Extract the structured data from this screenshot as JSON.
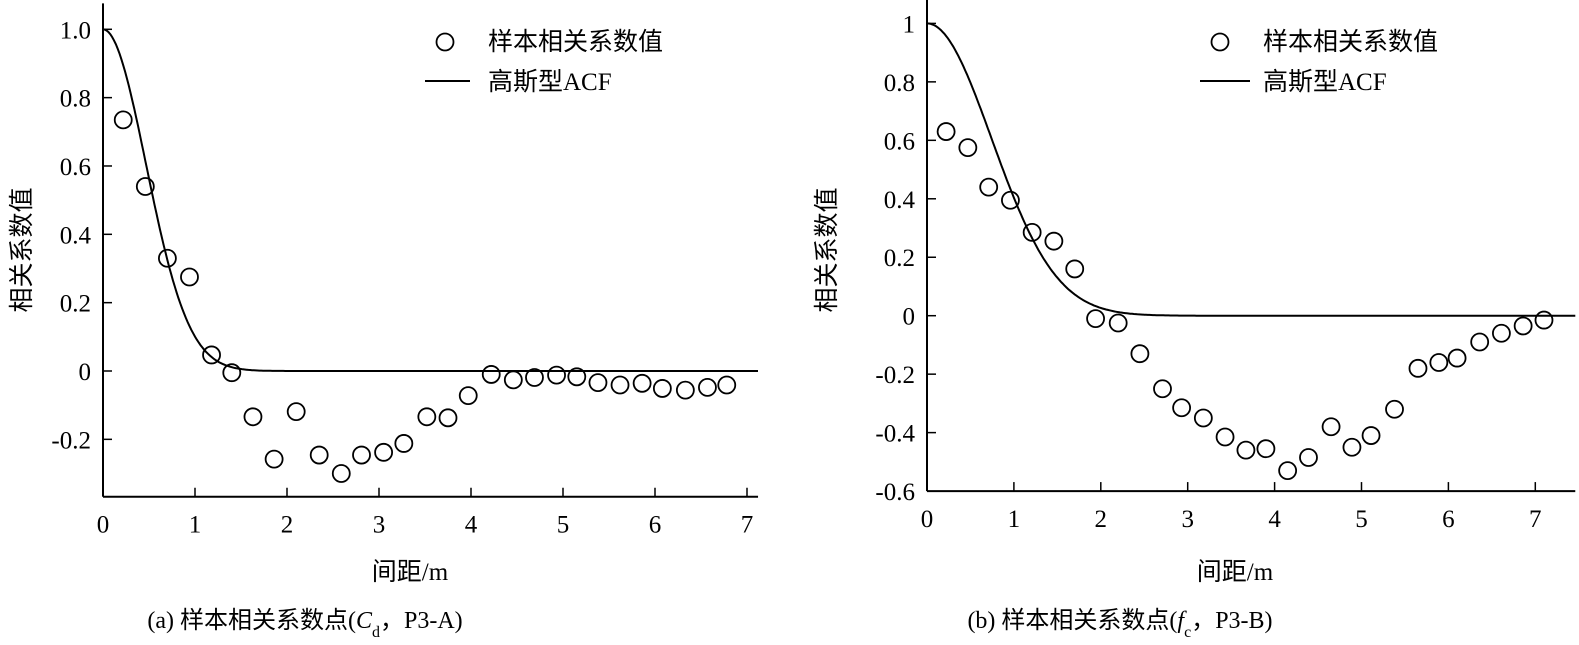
{
  "chart_data": [
    {
      "type": "scatter",
      "xlabel": "间距/m",
      "ylabel": "相关系数值",
      "caption": {
        "prefix": "(a) 样本相关系数点(",
        "var": "C",
        "sub": "d",
        "suffix": "，P3-A)"
      },
      "xlim": [
        0,
        7.12
      ],
      "ylim": [
        -0.368,
        1.076
      ],
      "xticks": [
        "0",
        "1",
        "2",
        "3",
        "4",
        "5",
        "6",
        "7"
      ],
      "xtick_values": [
        0,
        1,
        2,
        3,
        4,
        5,
        6,
        7
      ],
      "yticks": [
        "1.0",
        "0.8",
        "0.6",
        "0.4",
        "0.2",
        "0",
        "-0.2"
      ],
      "ytick_values": [
        1,
        0.8,
        0.6,
        0.4,
        0.2,
        0,
        -0.2
      ],
      "legend": {
        "placement": "top-right",
        "points_label": "样本相关系数值",
        "line_label": "高斯型ACF"
      },
      "grid": false,
      "series": [
        {
          "name": "样本相关系数值",
          "kind": "points",
          "x": [
            0.22,
            0.46,
            0.7,
            0.94,
            1.18,
            1.4,
            1.63,
            1.86,
            2.1,
            2.35,
            2.59,
            2.81,
            3.05,
            3.27,
            3.52,
            3.75,
            3.97,
            4.22,
            4.46,
            4.69,
            4.93,
            5.15,
            5.38,
            5.62,
            5.86,
            6.08,
            6.33,
            6.57,
            6.78
          ],
          "y": [
            0.735,
            0.54,
            0.33,
            0.275,
            0.047,
            -0.005,
            -0.134,
            -0.258,
            -0.119,
            -0.246,
            -0.3,
            -0.246,
            -0.238,
            -0.212,
            -0.134,
            -0.137,
            -0.072,
            -0.01,
            -0.026,
            -0.019,
            -0.012,
            -0.017,
            -0.034,
            -0.041,
            -0.036,
            -0.051,
            -0.056,
            -0.048,
            -0.041
          ]
        },
        {
          "name": "高斯型ACF",
          "kind": "gaussian",
          "scale_of_fluctuation": 0.66
        }
      ]
    },
    {
      "type": "scatter",
      "xlabel": "间距/m",
      "ylabel": "相关系数值",
      "caption": {
        "prefix": "(b) 样本相关系数点(",
        "var": "f",
        "sub": "c",
        "suffix": "，P3-B)"
      },
      "xlim": [
        0,
        7.46
      ],
      "ylim": [
        -0.6,
        1.08
      ],
      "xticks": [
        "0",
        "1",
        "2",
        "3",
        "4",
        "5",
        "6",
        "7"
      ],
      "xtick_values": [
        0,
        1,
        2,
        3,
        4,
        5,
        6,
        7
      ],
      "yticks": [
        "1",
        "0.8",
        "0.6",
        "0.4",
        "0.2",
        "0",
        "-0.2",
        "-0.4",
        "-0.6"
      ],
      "ytick_values": [
        1,
        0.8,
        0.6,
        0.4,
        0.2,
        0,
        -0.2,
        -0.4,
        -0.6
      ],
      "legend": {
        "placement": "top-right",
        "points_label": "样本相关系数值",
        "line_label": "高斯型ACF"
      },
      "grid": false,
      "series": [
        {
          "name": "样本相关系数值",
          "kind": "points",
          "x": [
            0.22,
            0.47,
            0.71,
            0.96,
            1.21,
            1.46,
            1.7,
            1.94,
            2.2,
            2.45,
            2.71,
            2.93,
            3.18,
            3.43,
            3.67,
            3.9,
            4.15,
            4.39,
            4.65,
            4.89,
            5.11,
            5.38,
            5.65,
            5.89,
            6.1,
            6.36,
            6.61,
            6.86,
            7.1
          ],
          "y": [
            0.63,
            0.575,
            0.44,
            0.395,
            0.285,
            0.255,
            0.16,
            -0.01,
            -0.025,
            -0.13,
            -0.25,
            -0.315,
            -0.35,
            -0.415,
            -0.46,
            -0.455,
            -0.53,
            -0.485,
            -0.38,
            -0.45,
            -0.41,
            -0.32,
            -0.18,
            -0.16,
            -0.145,
            -0.09,
            -0.06,
            -0.035,
            -0.015
          ]
        },
        {
          "name": "高斯型ACF",
          "kind": "gaussian",
          "scale_of_fluctuation": 1.05
        }
      ]
    }
  ]
}
